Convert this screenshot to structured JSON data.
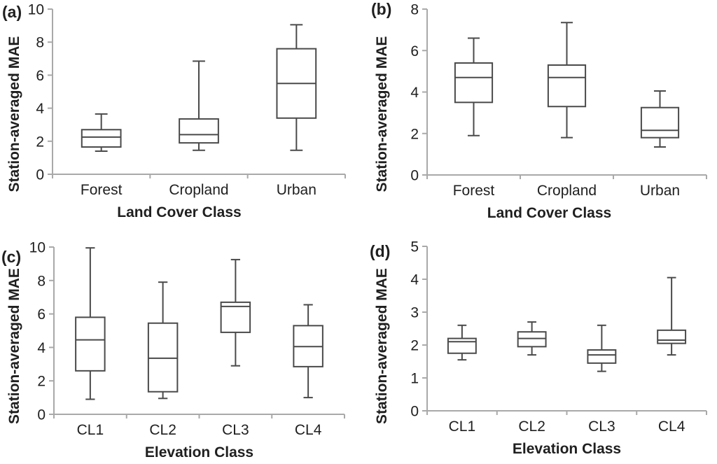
{
  "figure": {
    "background_color": "#ffffff",
    "text_color": "#1f1f1f",
    "axis_color": "#a9a9a9",
    "box_stroke_color": "#4a4a4a",
    "box_fill_color": "#ffffff"
  },
  "chart_data": [
    {
      "type": "box",
      "panel_label": "(a)",
      "title": "",
      "xlabel": "Land Cover Class",
      "ylabel": "Station-averaged MAE",
      "ylim": [
        0,
        10
      ],
      "yticks": [
        0,
        2,
        4,
        6,
        8,
        10
      ],
      "grid": false,
      "legend": "none",
      "categories": [
        "Forest",
        "Cropland",
        "Urban"
      ],
      "series": [
        {
          "category": "Forest",
          "whisker_low": 1.4,
          "q1": 1.65,
          "median": 2.25,
          "q3": 2.7,
          "whisker_high": 3.65
        },
        {
          "category": "Cropland",
          "whisker_low": 1.45,
          "q1": 1.9,
          "median": 2.4,
          "q3": 3.35,
          "whisker_high": 6.85
        },
        {
          "category": "Urban",
          "whisker_low": 1.45,
          "q1": 3.4,
          "median": 5.5,
          "q3": 7.6,
          "whisker_high": 9.05
        }
      ]
    },
    {
      "type": "box",
      "panel_label": "(b)",
      "title": "",
      "xlabel": "Land Cover Class",
      "ylabel": "Station-averaged MAE",
      "ylim": [
        0,
        8
      ],
      "yticks": [
        0,
        2,
        4,
        6,
        8
      ],
      "grid": false,
      "legend": "none",
      "categories": [
        "Forest",
        "Cropland",
        "Urban"
      ],
      "series": [
        {
          "category": "Forest",
          "whisker_low": 1.9,
          "q1": 3.5,
          "median": 4.7,
          "q3": 5.4,
          "whisker_high": 6.6
        },
        {
          "category": "Cropland",
          "whisker_low": 1.8,
          "q1": 3.3,
          "median": 4.7,
          "q3": 5.3,
          "whisker_high": 7.35
        },
        {
          "category": "Urban",
          "whisker_low": 1.35,
          "q1": 1.8,
          "median": 2.15,
          "q3": 3.25,
          "whisker_high": 4.05
        }
      ]
    },
    {
      "type": "box",
      "panel_label": "(c)",
      "title": "",
      "xlabel": "Elevation Class",
      "ylabel": "Station-averaged MAE",
      "ylim": [
        0,
        10
      ],
      "yticks": [
        0,
        2,
        4,
        6,
        8,
        10
      ],
      "grid": false,
      "legend": "none",
      "categories": [
        "CL1",
        "CL2",
        "CL3",
        "CL4"
      ],
      "series": [
        {
          "category": "CL1",
          "whisker_low": 0.9,
          "q1": 2.6,
          "median": 4.45,
          "q3": 5.8,
          "whisker_high": 9.95
        },
        {
          "category": "CL2",
          "whisker_low": 0.95,
          "q1": 1.35,
          "median": 3.35,
          "q3": 5.45,
          "whisker_high": 7.9
        },
        {
          "category": "CL3",
          "whisker_low": 2.9,
          "q1": 4.9,
          "median": 6.45,
          "q3": 6.7,
          "whisker_high": 9.25
        },
        {
          "category": "CL4",
          "whisker_low": 1.0,
          "q1": 2.85,
          "median": 4.05,
          "q3": 5.3,
          "whisker_high": 6.55
        }
      ]
    },
    {
      "type": "box",
      "panel_label": "(d)",
      "title": "",
      "xlabel": "Elevation Class",
      "ylabel": "Station-averaged MAE",
      "ylim": [
        0,
        5
      ],
      "yticks": [
        0,
        1,
        2,
        3,
        4,
        5
      ],
      "grid": false,
      "legend": "none",
      "categories": [
        "CL1",
        "CL2",
        "CL3",
        "CL4"
      ],
      "series": [
        {
          "category": "CL1",
          "whisker_low": 1.55,
          "q1": 1.75,
          "median": 2.1,
          "q3": 2.2,
          "whisker_high": 2.6
        },
        {
          "category": "CL2",
          "whisker_low": 1.7,
          "q1": 1.95,
          "median": 2.2,
          "q3": 2.4,
          "whisker_high": 2.7
        },
        {
          "category": "CL3",
          "whisker_low": 1.2,
          "q1": 1.45,
          "median": 1.7,
          "q3": 1.85,
          "whisker_high": 2.6
        },
        {
          "category": "CL4",
          "whisker_low": 1.7,
          "q1": 2.05,
          "median": 2.15,
          "q3": 2.45,
          "whisker_high": 4.05
        }
      ]
    }
  ]
}
